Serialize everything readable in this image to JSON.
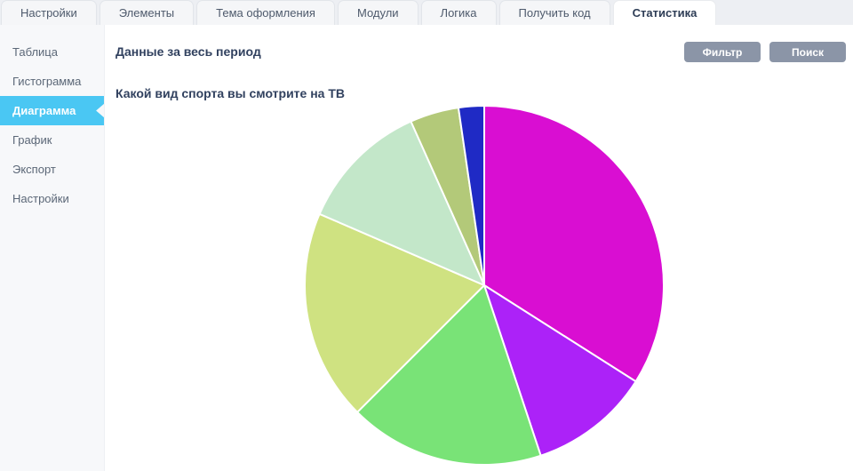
{
  "tabs": [
    {
      "id": "settings",
      "label": "Настройки",
      "active": false
    },
    {
      "id": "elements",
      "label": "Элементы",
      "active": false
    },
    {
      "id": "theme",
      "label": "Тема оформления",
      "active": false
    },
    {
      "id": "modules",
      "label": "Модули",
      "active": false
    },
    {
      "id": "logic",
      "label": "Логика",
      "active": false
    },
    {
      "id": "get-code",
      "label": "Получить код",
      "active": false
    },
    {
      "id": "statistics",
      "label": "Статистика",
      "active": true
    }
  ],
  "sidebar": {
    "active_color": "#4ac7f3",
    "items": [
      {
        "id": "table",
        "label": "Таблица",
        "active": false
      },
      {
        "id": "histogram",
        "label": "Гистограмма",
        "active": false
      },
      {
        "id": "diagram",
        "label": "Диаграмма",
        "active": true
      },
      {
        "id": "graph",
        "label": "График",
        "active": false
      },
      {
        "id": "export",
        "label": "Экспорт",
        "active": false
      },
      {
        "id": "settings",
        "label": "Настройки",
        "active": false
      }
    ]
  },
  "header": {
    "title": "Данные за весь период",
    "filter_label": "Фильтр",
    "search_label": "Поиск",
    "button_color": "#8b95a7"
  },
  "chart_data": {
    "type": "pie",
    "title": "Какой вид спорта вы смотрите на ТВ",
    "legend_position": "none",
    "start_angle_deg": 0,
    "direction": "clockwise",
    "separator_color": "#ffffff",
    "segments": [
      {
        "color": "#d90ed2",
        "percent": 34.0
      },
      {
        "color": "#ac22f8",
        "percent": 10.9
      },
      {
        "color": "#79e377",
        "percent": 17.6
      },
      {
        "color": "#cfe281",
        "percent": 19.0
      },
      {
        "color": "#c3e7c9",
        "percent": 11.8
      },
      {
        "color": "#b3c979",
        "percent": 4.4
      },
      {
        "color": "#1f2ac5",
        "percent": 2.3
      }
    ]
  }
}
